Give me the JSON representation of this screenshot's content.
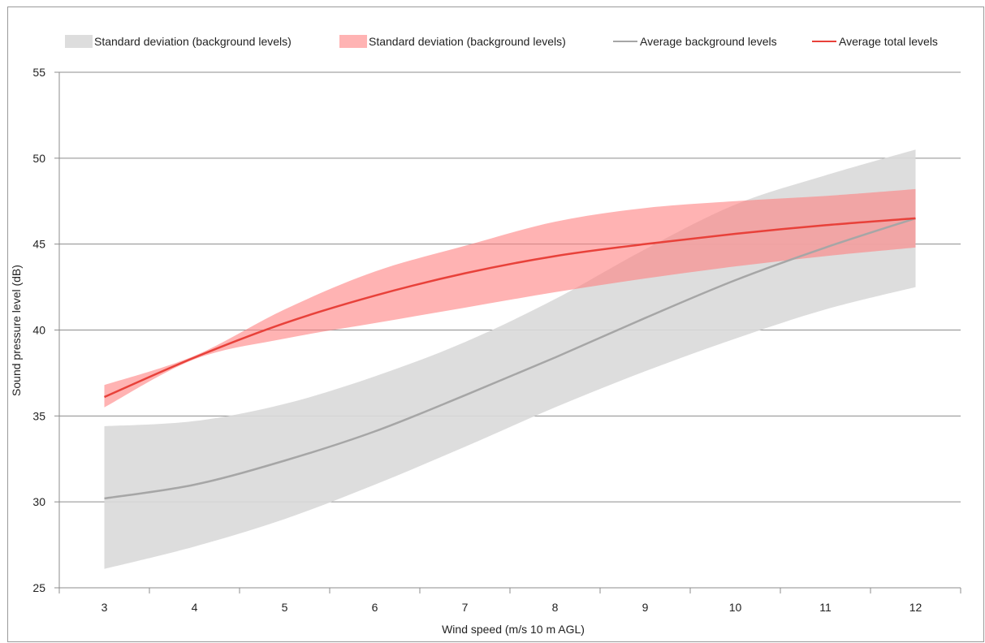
{
  "chart_data": {
    "type": "area",
    "xlabel": "Wind speed (m/s 10 m AGL)",
    "ylabel": "Sound pressure level (dB)",
    "xlim": [
      2.5,
      12.5
    ],
    "ylim": [
      25,
      55
    ],
    "x_ticks": [
      3,
      4,
      5,
      6,
      7,
      8,
      9,
      10,
      11,
      12
    ],
    "y_ticks": [
      25,
      30,
      35,
      40,
      45,
      50,
      55
    ],
    "grid": "horizontal",
    "legend_position": "top",
    "x": [
      3,
      4,
      5,
      6,
      7,
      8,
      9,
      10,
      11,
      12
    ],
    "series": [
      {
        "name": "Standard deviation (background levels)",
        "kind": "band",
        "color": "#d9d9d9",
        "lower": [
          26.1,
          27.4,
          29.0,
          31.0,
          33.2,
          35.5,
          37.6,
          39.5,
          41.2,
          42.5
        ],
        "upper": [
          34.4,
          34.7,
          35.7,
          37.3,
          39.3,
          41.8,
          44.7,
          47.3,
          49.0,
          50.5
        ]
      },
      {
        "name": "Standard deviation (background levels)",
        "kind": "band",
        "color": "#ff8080",
        "lower": [
          35.5,
          38.3,
          39.5,
          40.4,
          41.3,
          42.2,
          43.0,
          43.7,
          44.3,
          44.8
        ],
        "upper": [
          36.8,
          38.5,
          41.2,
          43.4,
          44.9,
          46.3,
          47.1,
          47.5,
          47.8,
          48.2
        ]
      },
      {
        "name": "Average background levels",
        "kind": "line",
        "color": "#a6a6a6",
        "values": [
          30.2,
          31.0,
          32.4,
          34.1,
          36.2,
          38.4,
          40.7,
          42.9,
          44.8,
          46.5
        ]
      },
      {
        "name": "Average total levels",
        "kind": "line",
        "color": "#e8413a",
        "values": [
          36.1,
          38.4,
          40.4,
          42.0,
          43.3,
          44.3,
          45.0,
          45.6,
          46.1,
          46.5
        ]
      }
    ]
  }
}
